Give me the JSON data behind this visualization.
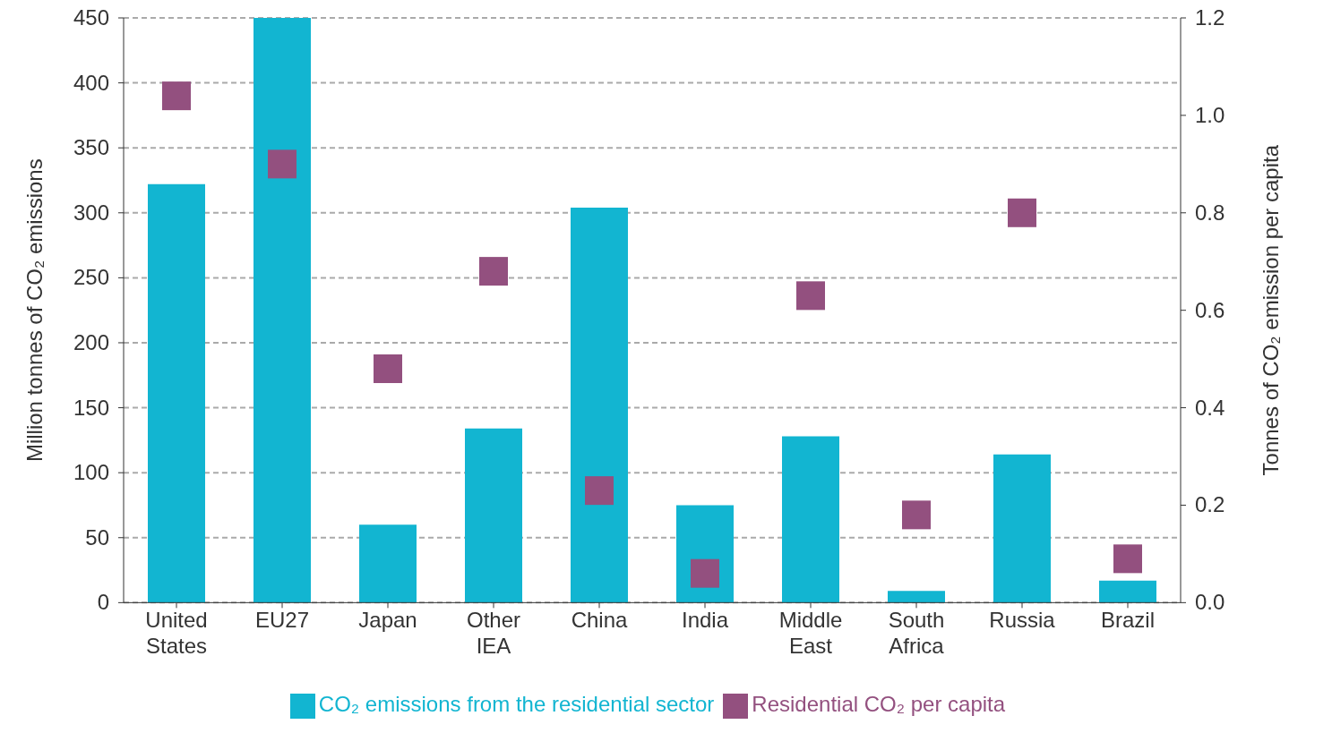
{
  "chart_data": {
    "type": "bar",
    "categories": [
      "United States",
      "EU27",
      "Japan",
      "Other IEA",
      "China",
      "India",
      "Middle East",
      "South Africa",
      "Russia",
      "Brazil"
    ],
    "series": [
      {
        "name": "CO₂ emissions from the residential sector",
        "color": "#12b5d1",
        "values": [
          322,
          450,
          60,
          134,
          304,
          75,
          128,
          9,
          114,
          17
        ]
      },
      {
        "name": "Residential CO₂ per capita",
        "type": "scatter",
        "axis": "y2",
        "color": "#93507f",
        "values": [
          1.04,
          0.9,
          0.48,
          0.68,
          0.23,
          0.06,
          0.63,
          0.18,
          0.8,
          0.09
        ]
      }
    ],
    "ylabel": "Million tonnes of CO₂ emissions",
    "y2label": "Tonnes of CO₂ emission per capita",
    "ylim": [
      0,
      450
    ],
    "yticks": [
      0,
      50,
      100,
      150,
      200,
      250,
      300,
      350,
      400,
      450
    ],
    "y2lim": [
      0,
      1.2
    ],
    "y2ticks": [
      {
        "value": 0,
        "label": "0.0"
      },
      0.2,
      0.4,
      0.6,
      0.8,
      {
        "value": 1,
        "label": "1.0"
      },
      1.2
    ],
    "grid": "y",
    "legend": "bottom",
    "marker": "square"
  }
}
